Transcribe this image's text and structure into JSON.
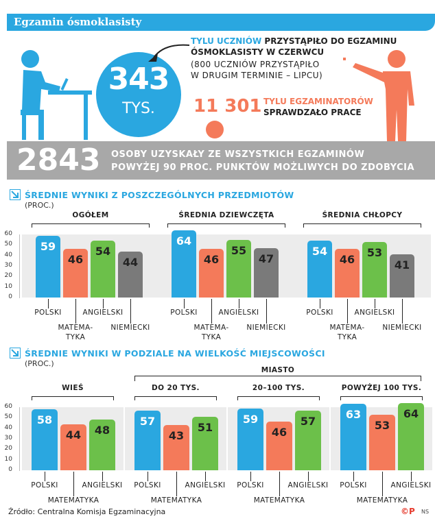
{
  "title": "Egzamin ósmoklasisty",
  "hero": {
    "big_number": "343",
    "big_unit": "TYS.",
    "line1_blue": "TYLU UCZNIÓW",
    "line1_rest": " PRZYSTĄPIŁO DO EGZAMINU",
    "line2": "ÓSMOKLASISTY W CZERWCU",
    "line3": "(800 UCZNIÓW PRZYSTĄPIŁO",
    "line4": "W DRUGIM TERMINIE – LIPCU)",
    "examiners_number": "11 301",
    "examiners_line1": "TYLU EGZAMINATORÓW",
    "examiners_line2": "SPRAWDZAŁO PRACE"
  },
  "stat": {
    "number": "2843",
    "line1": "OSOBY UZYSKAŁY ZE WSZYSTKICH EGZAMINÓW",
    "line2": "POWYŻEJ 90 PROC. PUNKTÓW MOŻLIWYCH DO ZDOBYCIA"
  },
  "section1": {
    "title": "ŚREDNIE WYNIKI Z POSZCZEGÓLNYCH PRZEDMIOTÓW",
    "subtitle": "(PROC.)"
  },
  "section2": {
    "title": "ŚREDNIE WYNIKI W PODZIALE NA WIELKOŚĆ MIEJSCOWOŚCI",
    "subtitle": "(PROC.)",
    "miasto_label": "MIASTO"
  },
  "source": "Źródło: Centralna Komisja Egzaminacyjna",
  "logo": {
    "cp": "©P",
    "ns": "NS"
  },
  "colors": {
    "blue": "#2aa7e0",
    "orange": "#f47a5a",
    "green": "#6cc04a",
    "grey": "#7a7a7a"
  },
  "chart_data": [
    {
      "type": "bar",
      "ylim": [
        0,
        60
      ],
      "yticks": [
        "0",
        "10",
        "20",
        "30",
        "40",
        "50",
        "60"
      ],
      "categories": [
        "POLSKI",
        "MATEMA-TYKA",
        "ANGIELSKI",
        "NIEMIECKI"
      ],
      "groups": [
        {
          "name": "OGÓŁEM",
          "values": [
            59,
            46,
            54,
            44
          ]
        },
        {
          "name": "ŚREDNIA DZIEWCZĘTA",
          "values": [
            64,
            46,
            55,
            47
          ]
        },
        {
          "name": "ŚREDNIA CHŁOPCY",
          "values": [
            54,
            46,
            53,
            41
          ]
        }
      ]
    },
    {
      "type": "bar",
      "ylim": [
        0,
        60
      ],
      "yticks": [
        "0",
        "10",
        "20",
        "30",
        "40",
        "50",
        "60"
      ],
      "categories": [
        "POLSKI",
        "MATEMATYKA",
        "ANGIELSKI"
      ],
      "groups": [
        {
          "name": "WIEŚ",
          "values": [
            58,
            44,
            48
          ]
        },
        {
          "name": "DO 20 TYS.",
          "values": [
            57,
            43,
            51
          ]
        },
        {
          "name": "20–100 TYS.",
          "values": [
            59,
            46,
            57
          ]
        },
        {
          "name": "POWYŻEJ 100 TYS.",
          "values": [
            63,
            53,
            64
          ]
        }
      ]
    }
  ]
}
